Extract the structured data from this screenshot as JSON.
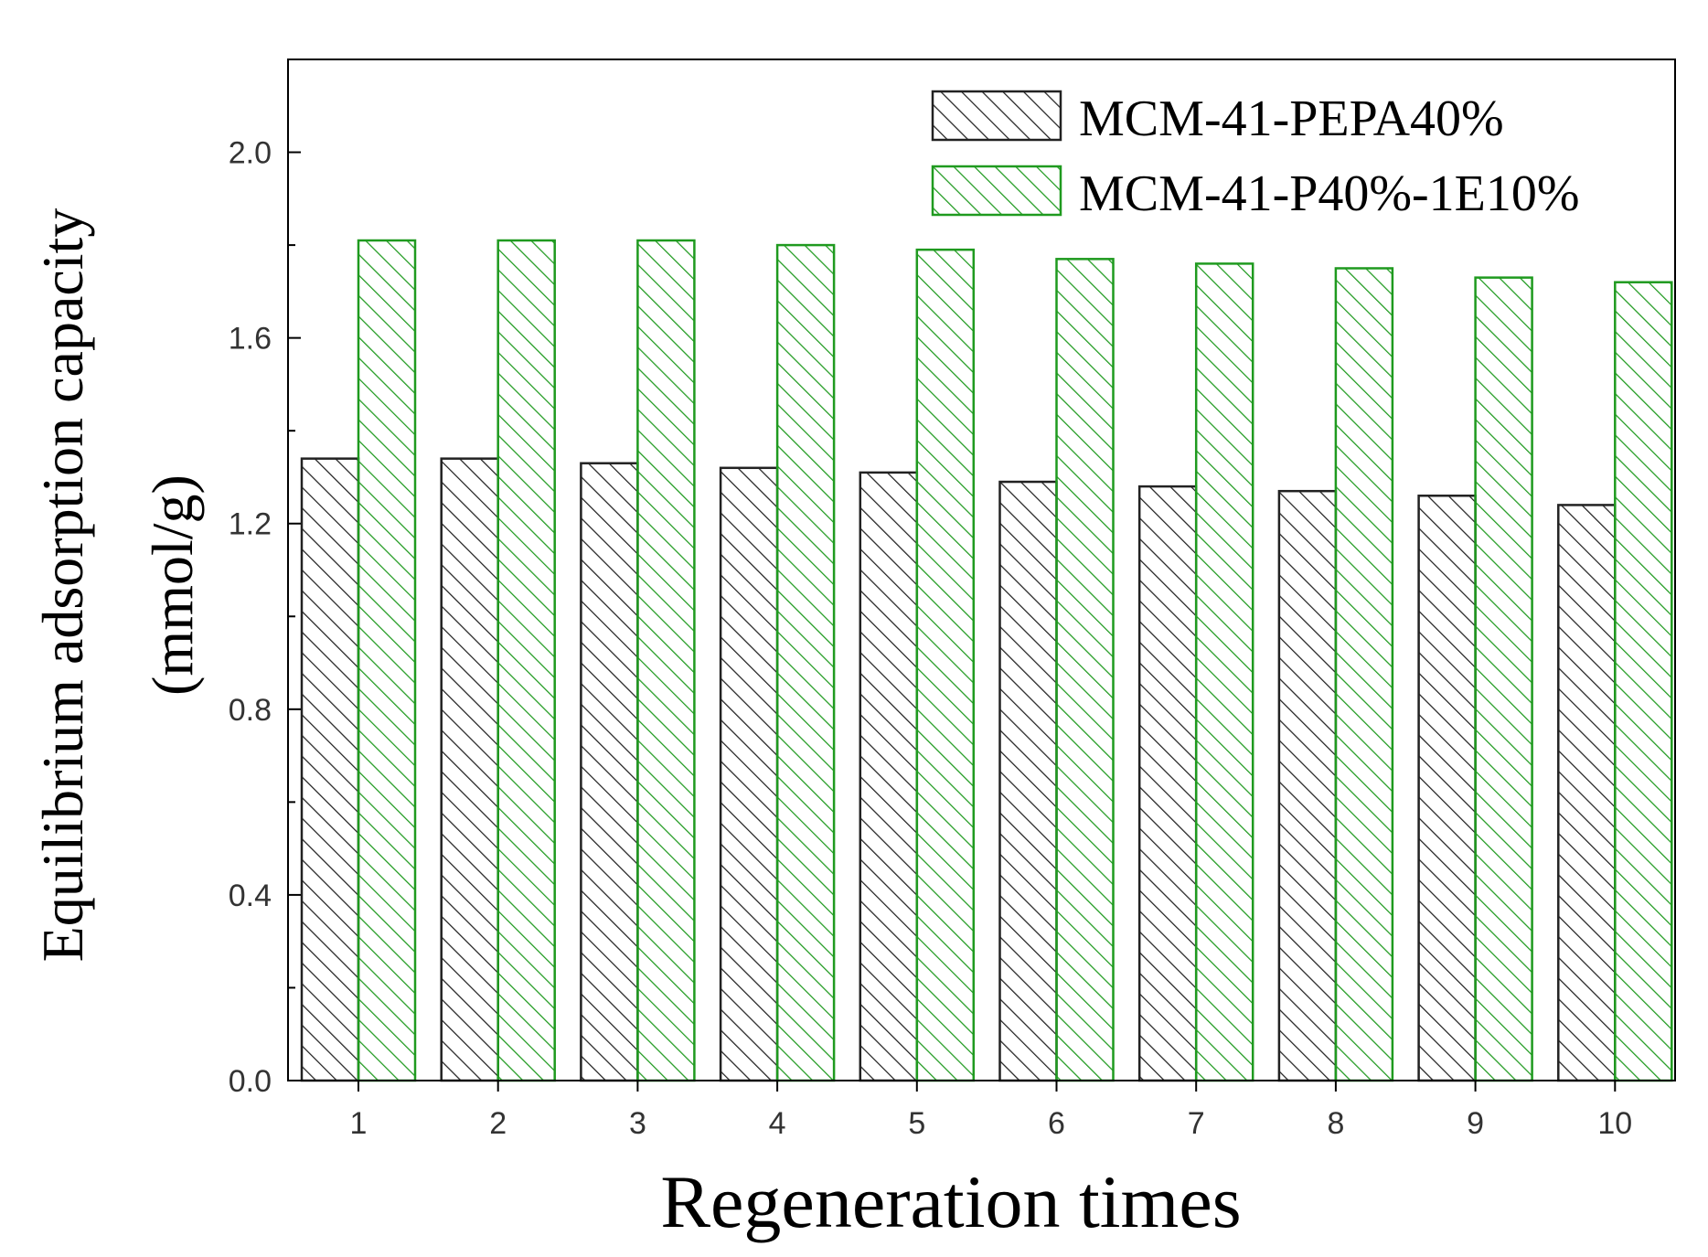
{
  "chart_data": {
    "type": "bar",
    "title": "",
    "xlabel": "Regeneration times",
    "ylabel_line1": "Equilibrium adsorption capacity",
    "ylabel_line2": "(mmol/g)",
    "categories": [
      "1",
      "2",
      "3",
      "4",
      "5",
      "6",
      "7",
      "8",
      "9",
      "10"
    ],
    "series": [
      {
        "name": "MCM-41-PEPA40%",
        "color": "#222222",
        "pattern": "diagonal-hatch",
        "values": [
          1.34,
          1.34,
          1.33,
          1.32,
          1.31,
          1.29,
          1.28,
          1.27,
          1.26,
          1.24
        ]
      },
      {
        "name": "MCM-41-P40%-1E10%",
        "color": "#1f9a1f",
        "pattern": "diagonal-hatch",
        "values": [
          1.81,
          1.81,
          1.81,
          1.8,
          1.79,
          1.77,
          1.76,
          1.75,
          1.73,
          1.72
        ]
      }
    ],
    "ylim": [
      0.0,
      2.2
    ],
    "yticks": [
      "0.0",
      "0.4",
      "0.8",
      "1.2",
      "1.6",
      "2.0"
    ],
    "ytick_values": [
      0.0,
      0.4,
      0.8,
      1.2,
      1.6,
      2.0
    ],
    "grid": false,
    "legend_position": "top-right"
  }
}
